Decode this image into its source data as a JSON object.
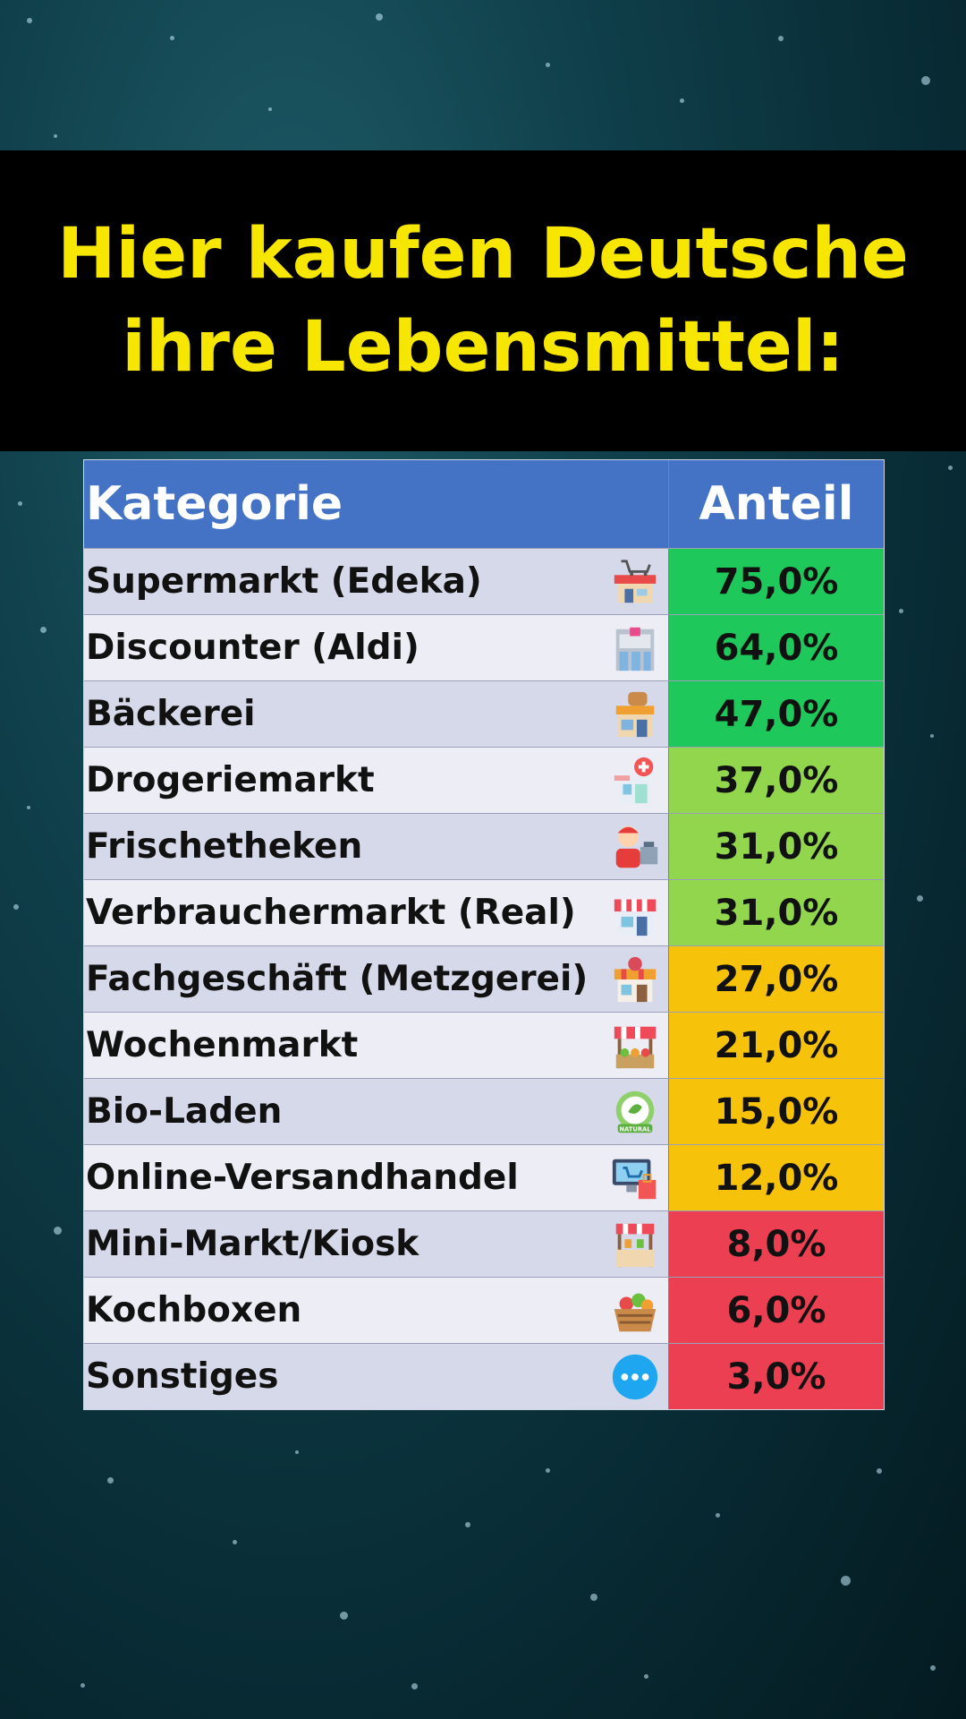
{
  "title": {
    "line1": "Hier kaufen Deutsche",
    "line2": "ihre Lebensmittel:"
  },
  "chart_data": {
    "type": "table",
    "columns": [
      "Kategorie",
      "Anteil"
    ],
    "rows": [
      {
        "label": "Supermarkt (Edeka)",
        "value": "75,0%",
        "color": "#1ec85a",
        "icon": "supermarket-cart-icon"
      },
      {
        "label": "Discounter (Aldi)",
        "value": "64,0%",
        "color": "#1ec85a",
        "icon": "store-building-icon"
      },
      {
        "label": "Bäckerei",
        "value": "47,0%",
        "color": "#1ec85a",
        "icon": "bakery-icon"
      },
      {
        "label": "Drogeriemarkt",
        "value": "37,0%",
        "color": "#92d64d",
        "icon": "pharmacy-icon"
      },
      {
        "label": "Frischetheken",
        "value": "31,0%",
        "color": "#92d64d",
        "icon": "cashier-icon"
      },
      {
        "label": "Verbrauchermarkt (Real)",
        "value": "31,0%",
        "color": "#92d64d",
        "icon": "shop-awning-icon"
      },
      {
        "label": "Fachgeschäft (Metzgerei)",
        "value": "27,0%",
        "color": "#f7c20a",
        "icon": "butcher-shop-icon"
      },
      {
        "label": "Wochenmarkt",
        "value": "21,0%",
        "color": "#f7c20a",
        "icon": "market-stall-icon"
      },
      {
        "label": "Bio-Laden",
        "value": "15,0%",
        "color": "#f7c20a",
        "icon": "natural-badge-icon"
      },
      {
        "label": "Online-Versandhandel",
        "value": "12,0%",
        "color": "#f7c20a",
        "icon": "online-shopping-icon"
      },
      {
        "label": "Mini-Markt/Kiosk",
        "value": "8,0%",
        "color": "#ec3f52",
        "icon": "kiosk-icon"
      },
      {
        "label": "Kochboxen",
        "value": "6,0%",
        "color": "#ec3f52",
        "icon": "food-basket-icon"
      },
      {
        "label": "Sonstiges",
        "value": "3,0%",
        "color": "#ec3f52",
        "icon": "more-dots-icon"
      }
    ]
  }
}
